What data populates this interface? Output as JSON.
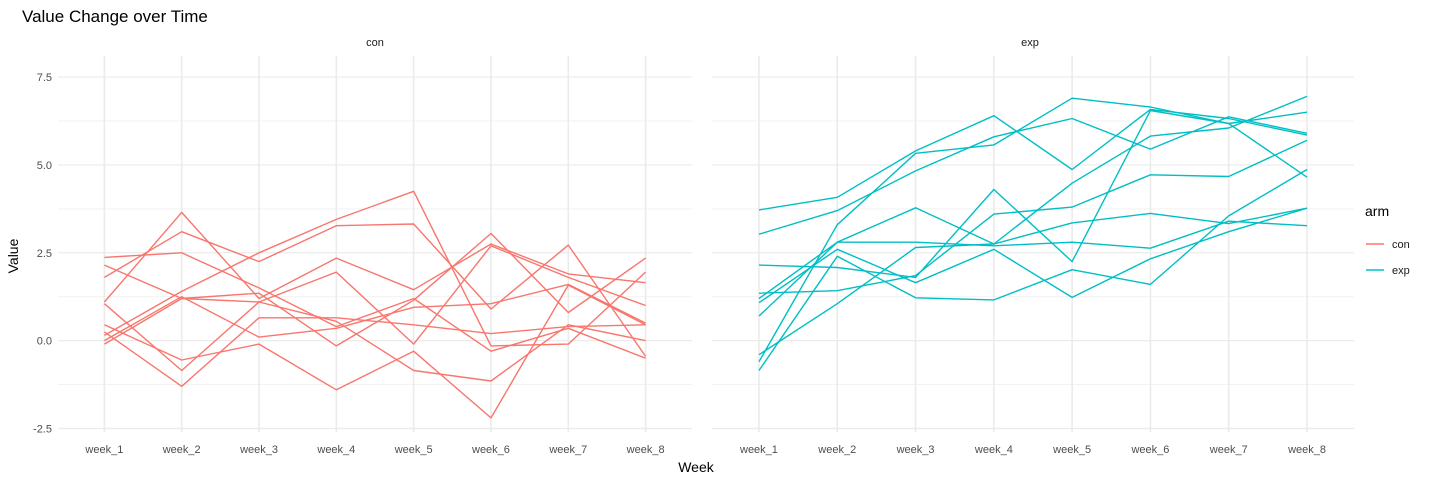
{
  "chart_data": {
    "type": "line",
    "title": "Value Change over Time",
    "xlabel": "Week",
    "ylabel": "Value",
    "categories": [
      "week_1",
      "week_2",
      "week_3",
      "week_4",
      "week_5",
      "week_6",
      "week_7",
      "week_8"
    ],
    "y_ticks": [
      -2.5,
      0.0,
      2.5,
      5.0,
      7.5
    ],
    "y_tick_labels": [
      "-2.5",
      "0.0",
      "2.5",
      "5.0",
      "7.5"
    ],
    "ylim": [
      -2.6,
      8.1
    ],
    "grid": true,
    "legend": {
      "title": "arm",
      "position": "right",
      "entries": [
        {
          "label": "con",
          "color": "#F8766D"
        },
        {
          "label": "exp",
          "color": "#00BFC4"
        }
      ]
    },
    "panels": [
      {
        "label": "con",
        "color": "#F8766D",
        "series": [
          {
            "values": [
              2.37,
              2.5,
              1.5,
              0.4,
              1.2,
              -0.3,
              0.35,
              -0.5
            ]
          },
          {
            "values": [
              2.15,
              1.2,
              1.35,
              -0.15,
              1.15,
              3.05,
              0.8,
              2.35
            ]
          },
          {
            "values": [
              1.1,
              3.65,
              1.2,
              2.35,
              1.45,
              2.75,
              1.9,
              1.65
            ]
          },
          {
            "values": [
              1.05,
              -0.85,
              1.1,
              1.95,
              -0.1,
              2.7,
              1.8,
              1.0
            ]
          },
          {
            "values": [
              1.8,
              3.1,
              2.25,
              3.27,
              3.32,
              0.9,
              2.72,
              -0.45
            ]
          },
          {
            "values": [
              0.45,
              -0.55,
              -0.1,
              -1.4,
              -0.3,
              -2.2,
              1.58,
              0.45
            ]
          },
          {
            "values": [
              0.25,
              -1.3,
              0.65,
              0.65,
              0.45,
              0.2,
              0.4,
              0.45
            ]
          },
          {
            "values": [
              0.15,
              1.4,
              2.5,
              3.45,
              4.25,
              -0.15,
              -0.1,
              1.95
            ]
          },
          {
            "values": [
              0.0,
              1.25,
              0.1,
              0.35,
              0.95,
              1.05,
              1.6,
              0.5
            ]
          },
          {
            "values": [
              -0.1,
              1.2,
              1.1,
              0.55,
              -0.85,
              -1.15,
              0.45,
              0.0
            ]
          }
        ]
      },
      {
        "label": "exp",
        "color": "#00BFC4",
        "series": [
          {
            "values": [
              3.72,
              4.08,
              5.4,
              6.4,
              4.87,
              6.58,
              6.32,
              5.85
            ]
          },
          {
            "values": [
              3.03,
              3.7,
              4.83,
              5.8,
              6.32,
              5.45,
              6.37,
              5.9
            ]
          },
          {
            "values": [
              2.15,
              2.08,
              1.8,
              4.3,
              2.25,
              6.55,
              6.18,
              4.65
            ]
          },
          {
            "values": [
              1.35,
              1.42,
              1.85,
              3.6,
              3.8,
              4.72,
              4.67,
              5.7
            ]
          },
          {
            "values": [
              1.08,
              2.6,
              1.65,
              2.6,
              1.23,
              2.33,
              3.1,
              3.77
            ]
          },
          {
            "values": [
              1.2,
              2.8,
              2.8,
              2.7,
              2.8,
              2.63,
              3.4,
              3.27
            ]
          },
          {
            "values": [
              0.7,
              2.8,
              3.78,
              2.75,
              3.35,
              3.62,
              3.33,
              3.77
            ]
          },
          {
            "values": [
              -0.4,
              1.05,
              2.65,
              2.75,
              4.48,
              5.82,
              6.05,
              6.95
            ]
          },
          {
            "values": [
              -0.6,
              3.3,
              5.33,
              5.57,
              6.9,
              6.65,
              6.18,
              6.5
            ]
          },
          {
            "values": [
              -0.85,
              2.4,
              1.22,
              1.16,
              2.02,
              1.6,
              3.55,
              4.87
            ]
          }
        ]
      }
    ]
  }
}
